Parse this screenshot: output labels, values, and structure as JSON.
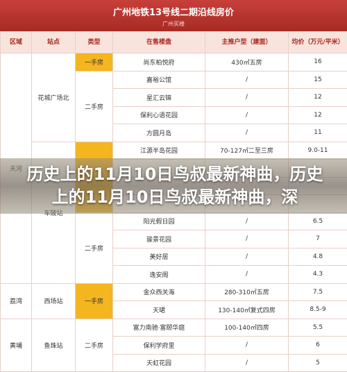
{
  "header": {
    "title": "广州地铁13号线二期沿线房价",
    "subtitle": "广州买楼"
  },
  "table": {
    "headers": [
      "区域",
      "站点",
      "类型",
      "在售楼盘",
      "主推户型（建面）",
      "均价（万元/平米）"
    ],
    "areas": [
      {
        "label": "天河",
        "span": 13
      },
      {
        "label": "荔湾",
        "span": 2
      },
      {
        "label": "黄埔",
        "span": 3
      }
    ],
    "stations": [
      {
        "label": "花城广场北",
        "span": 5
      },
      {
        "label": "车陂站",
        "span": 8
      },
      {
        "label": "西场站",
        "span": 2
      },
      {
        "label": "鱼珠站",
        "span": 3
      }
    ],
    "types": [
      {
        "label": "一手房",
        "span": 1,
        "highlight": true
      },
      {
        "label": "二手房",
        "span": 4,
        "highlight": false
      },
      {
        "span": 4,
        "highlight": true
      },
      {
        "label": "二手房",
        "span": 4,
        "highlight": false
      },
      {
        "label": "一手房",
        "span": 2,
        "highlight": true
      },
      {
        "label": "二手房",
        "span": 3,
        "highlight": false
      }
    ],
    "rows": [
      [
        "尚东柏悦府",
        "430㎡五房",
        "16"
      ],
      [
        "嘉裕公馆",
        "/",
        "15"
      ],
      [
        "星汇云锦",
        "/",
        "12"
      ],
      [
        "保利心语花园",
        "/",
        "12"
      ],
      [
        "方圆月岛",
        "/",
        "11"
      ],
      [
        "江源半岛花园",
        "70-127㎡二至三房",
        "9.0-11"
      ],
      null,
      null,
      null,
      [
        "阳光假日园",
        "/",
        "6.5"
      ],
      [
        "骏景花园",
        "/",
        "7"
      ],
      [
        "美好居",
        "/",
        "4.8"
      ],
      [
        "逸安阁",
        "/",
        "4.3"
      ],
      [
        "金众西关海",
        "280-310㎡五房",
        "7.5"
      ],
      [
        "天珺",
        "130-140㎡复式四房",
        "8.5-9"
      ],
      [
        "富力南驰·富颐华庭",
        "100-140㎡四房",
        "5.5"
      ],
      [
        "保利学府里",
        "/",
        "6"
      ],
      [
        "天虹花园",
        "/",
        "5"
      ]
    ]
  },
  "banner": {
    "text": "历史上的11月10日鸟叔最新神曲，历史上的11月10日鸟叔最新神曲，深"
  }
}
